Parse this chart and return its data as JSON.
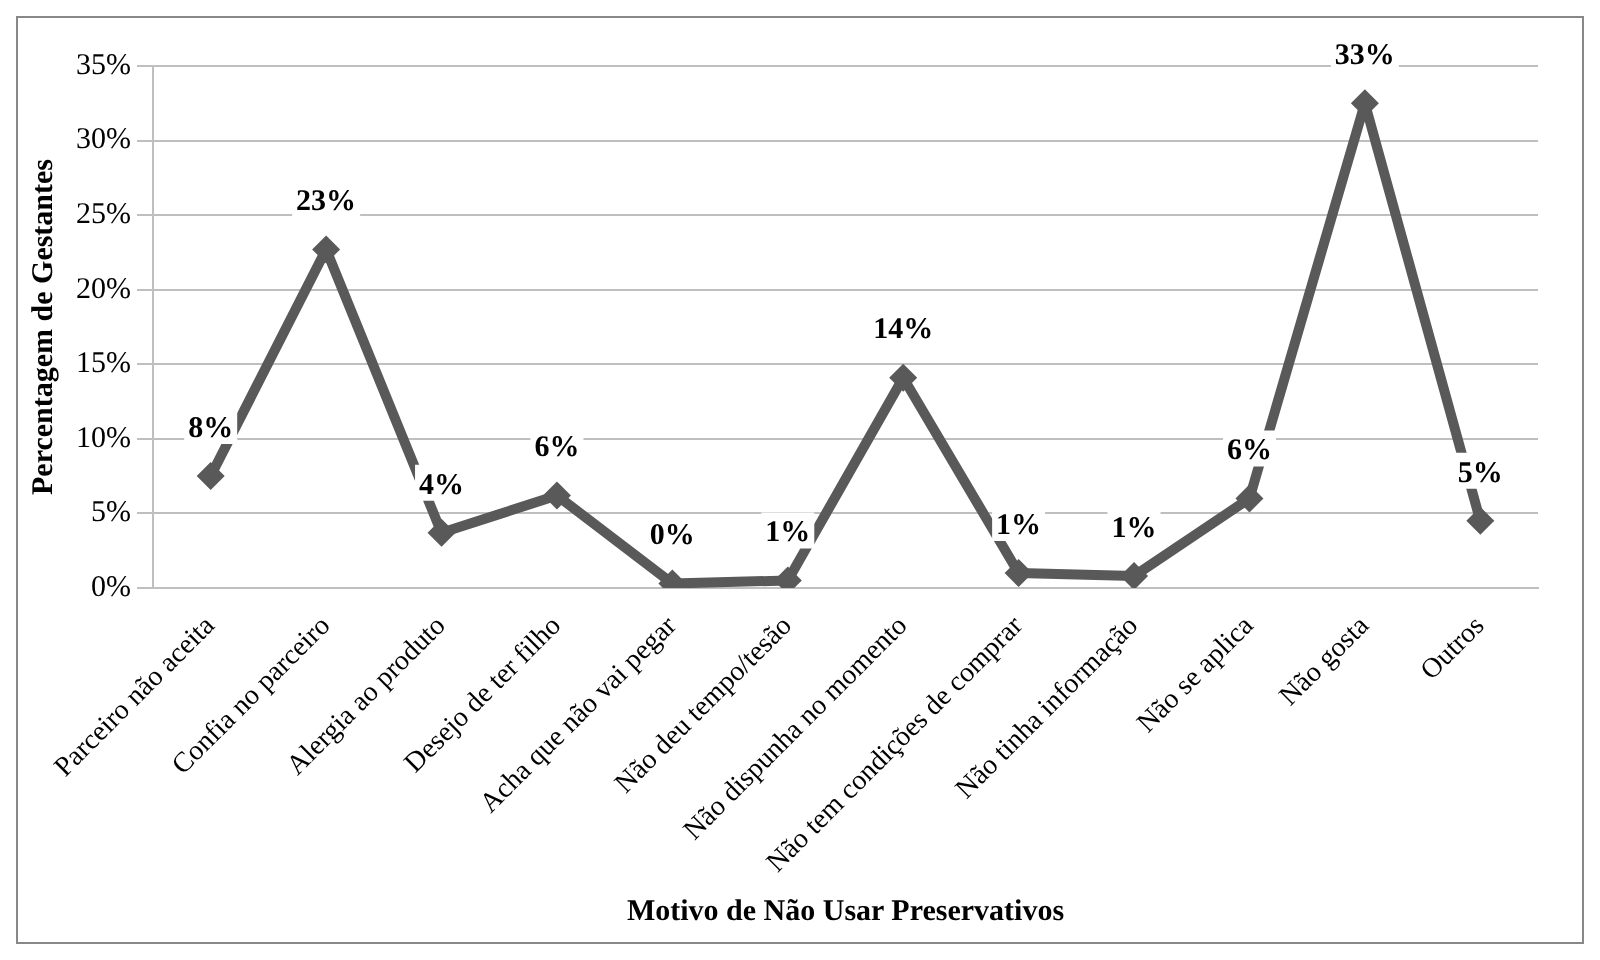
{
  "chart_data": {
    "type": "line",
    "xlabel": "Motivo de Não Usar Preservativos",
    "ylabel": "Percentagem de Gestantes",
    "categories": [
      "Parceiro não aceita",
      "Confia no parceiro",
      "Alergia ao produto",
      "Desejo de ter filho",
      "Acha que não vai pegar",
      "Não deu tempo/tesão",
      "Não dispunha no momento",
      "Não tem condições de comprar",
      "Não tinha informação",
      "Não se aplica",
      "Não gosta",
      "Outros"
    ],
    "series": [
      {
        "color": "#595959",
        "values": [
          7.5,
          22.7,
          3.7,
          6.2,
          0.3,
          0.5,
          14.1,
          1.0,
          0.8,
          6.0,
          32.5,
          4.5
        ],
        "value_labels": [
          "8%",
          "23%",
          "4%",
          "6%",
          "0%",
          "1%",
          "14%",
          "1%",
          "1%",
          "6%",
          "33%",
          "5%"
        ]
      }
    ],
    "ylim": [
      0,
      35
    ],
    "yticks": [
      {
        "value": 0,
        "label": "0%"
      },
      {
        "value": 5,
        "label": "5%"
      },
      {
        "value": 10,
        "label": "10%"
      },
      {
        "value": 15,
        "label": "15%"
      },
      {
        "value": 20,
        "label": "20%"
      },
      {
        "value": 25,
        "label": "25%"
      },
      {
        "value": 30,
        "label": "30%"
      },
      {
        "value": 35,
        "label": "35%"
      }
    ],
    "grid": "y",
    "legend": false,
    "marker": "diamond",
    "line_style": "solid"
  }
}
